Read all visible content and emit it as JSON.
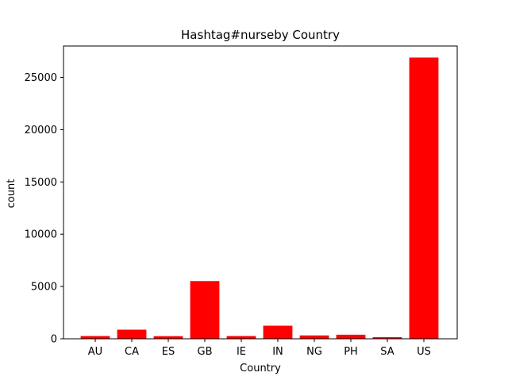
{
  "chart_data": {
    "type": "bar",
    "title": "Hashtag#nurseby Country",
    "xlabel": "Country",
    "ylabel": "count",
    "categories": [
      "AU",
      "CA",
      "ES",
      "GB",
      "IE",
      "IN",
      "NG",
      "PH",
      "SA",
      "US"
    ],
    "values": [
      260,
      870,
      250,
      5520,
      260,
      1250,
      320,
      390,
      150,
      26900
    ],
    "ylim": [
      0,
      28000
    ],
    "yticks": [
      0,
      5000,
      10000,
      15000,
      20000,
      25000
    ],
    "bar_color": "#ff0000",
    "grid": false,
    "legend": "none"
  }
}
